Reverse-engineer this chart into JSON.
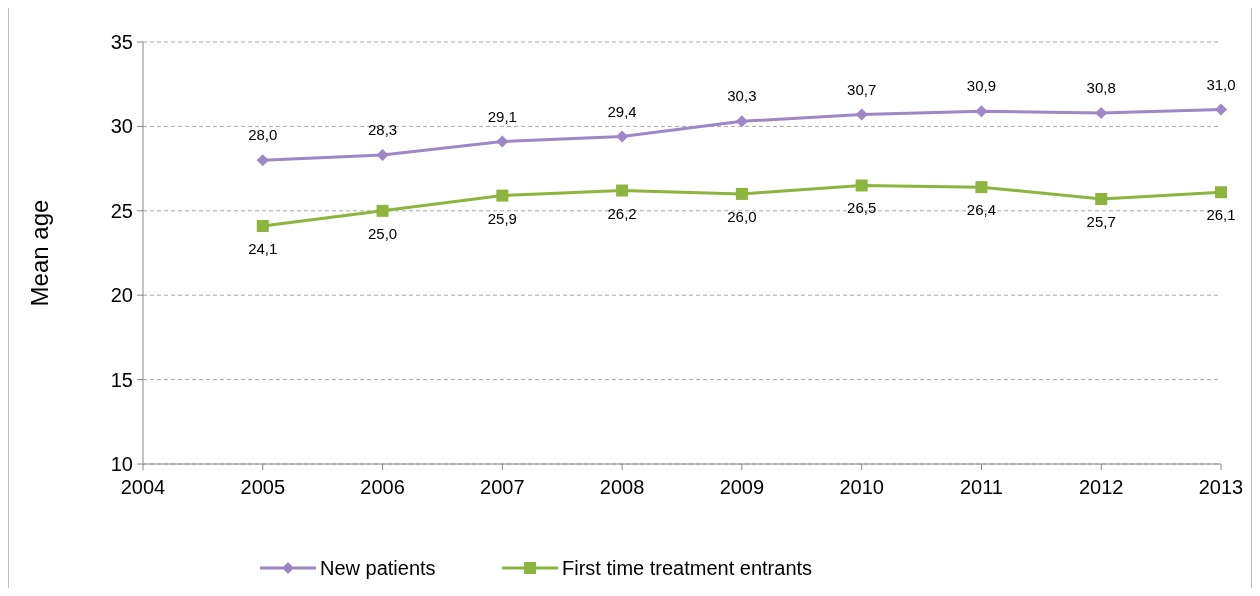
{
  "chart_data": {
    "type": "line",
    "ylabel": "Mean age",
    "x": [
      2005,
      2006,
      2007,
      2008,
      2009,
      2010,
      2011,
      2012,
      2013
    ],
    "xlim": [
      2004,
      2013
    ],
    "xticks": [
      2004,
      2005,
      2006,
      2007,
      2008,
      2009,
      2010,
      2011,
      2012,
      2013
    ],
    "ylim": [
      10,
      35
    ],
    "yticks": [
      10,
      15,
      20,
      25,
      30,
      35
    ],
    "grid": "y",
    "legend": "bottom",
    "series": [
      {
        "name": "New patients",
        "color": "#9e86c8",
        "marker": "diamond",
        "values": [
          28.0,
          28.3,
          29.1,
          29.4,
          30.3,
          30.7,
          30.9,
          30.8,
          31.0
        ],
        "value_labels": [
          "28,0",
          "28,3",
          "29,1",
          "29,4",
          "30,3",
          "30,7",
          "30,9",
          "30,8",
          "31,0"
        ]
      },
      {
        "name": "First time treatment entrants",
        "color": "#8db43e",
        "marker": "square",
        "values": [
          24.1,
          25.0,
          25.9,
          26.2,
          26.0,
          26.5,
          26.4,
          25.7,
          26.1
        ],
        "value_labels": [
          "24,1",
          "25,0",
          "25,9",
          "26,2",
          "26,0",
          "26,5",
          "26,4",
          "25,7",
          "26,1"
        ]
      }
    ]
  }
}
